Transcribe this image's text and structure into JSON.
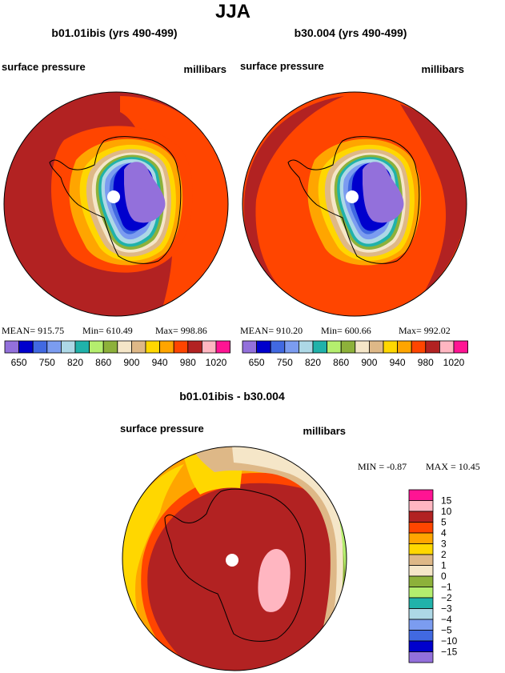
{
  "page_title": "JJA",
  "colors": {
    "base": [
      "#9370db",
      "#0000cd",
      "#4169e1",
      "#7b9cf0",
      "#add8e6",
      "#20b2aa",
      "#b4ee6e",
      "#8db13a",
      "#f5e6c8",
      "#deb887",
      "#ffd700",
      "#ffa500",
      "#ff4500",
      "#b22222",
      "#ffb6c1",
      "#ff1493"
    ],
    "diff": [
      "#9370db",
      "#0000cd",
      "#4169e1",
      "#7b9cf0",
      "#add8e6",
      "#20b2aa",
      "#b4ee6e",
      "#8db13a",
      "#f5e6c8",
      "#deb887",
      "#ffd700",
      "#ffa500",
      "#ff4500",
      "#b22222",
      "#ffb6c1",
      "#ff1493"
    ]
  },
  "chart_data": [
    {
      "type": "heatmap",
      "title": "b01.01ibis (yrs 490-499)",
      "left_label": "surface pressure",
      "right_label": "millibars",
      "stats": {
        "mean_label": "MEAN=",
        "mean": "915.75",
        "min_label": "Min=",
        "min": "610.49",
        "max_label": "Max=",
        "max": "998.86"
      },
      "colorbar_levels": [
        "650",
        "750",
        "820",
        "860",
        "900",
        "940",
        "980",
        "1020"
      ],
      "projection": "south polar stereographic",
      "field": "surface pressure"
    },
    {
      "type": "heatmap",
      "title": "b30.004 (yrs 490-499)",
      "left_label": "surface pressure",
      "right_label": "millibars",
      "stats": {
        "mean_label": "MEAN=",
        "mean": "910.20",
        "min_label": "Min=",
        "min": "600.66",
        "max_label": "Max=",
        "max": "992.02"
      },
      "colorbar_levels": [
        "650",
        "750",
        "820",
        "860",
        "900",
        "940",
        "980",
        "1020"
      ],
      "projection": "south polar stereographic",
      "field": "surface pressure"
    },
    {
      "type": "heatmap",
      "title": "b01.01ibis - b30.004",
      "left_label": "surface pressure",
      "right_label": "millibars",
      "stats": {
        "min_label": "MIN =",
        "min": "-0.87",
        "max_label": "MAX =",
        "max": "10.45"
      },
      "colorbar_levels": [
        "15",
        "10",
        "5",
        "4",
        "3",
        "2",
        "1",
        "0",
        "−1",
        "−2",
        "−3",
        "−4",
        "−5",
        "−10",
        "−15"
      ],
      "projection": "south polar stereographic",
      "field": "surface pressure difference"
    }
  ]
}
